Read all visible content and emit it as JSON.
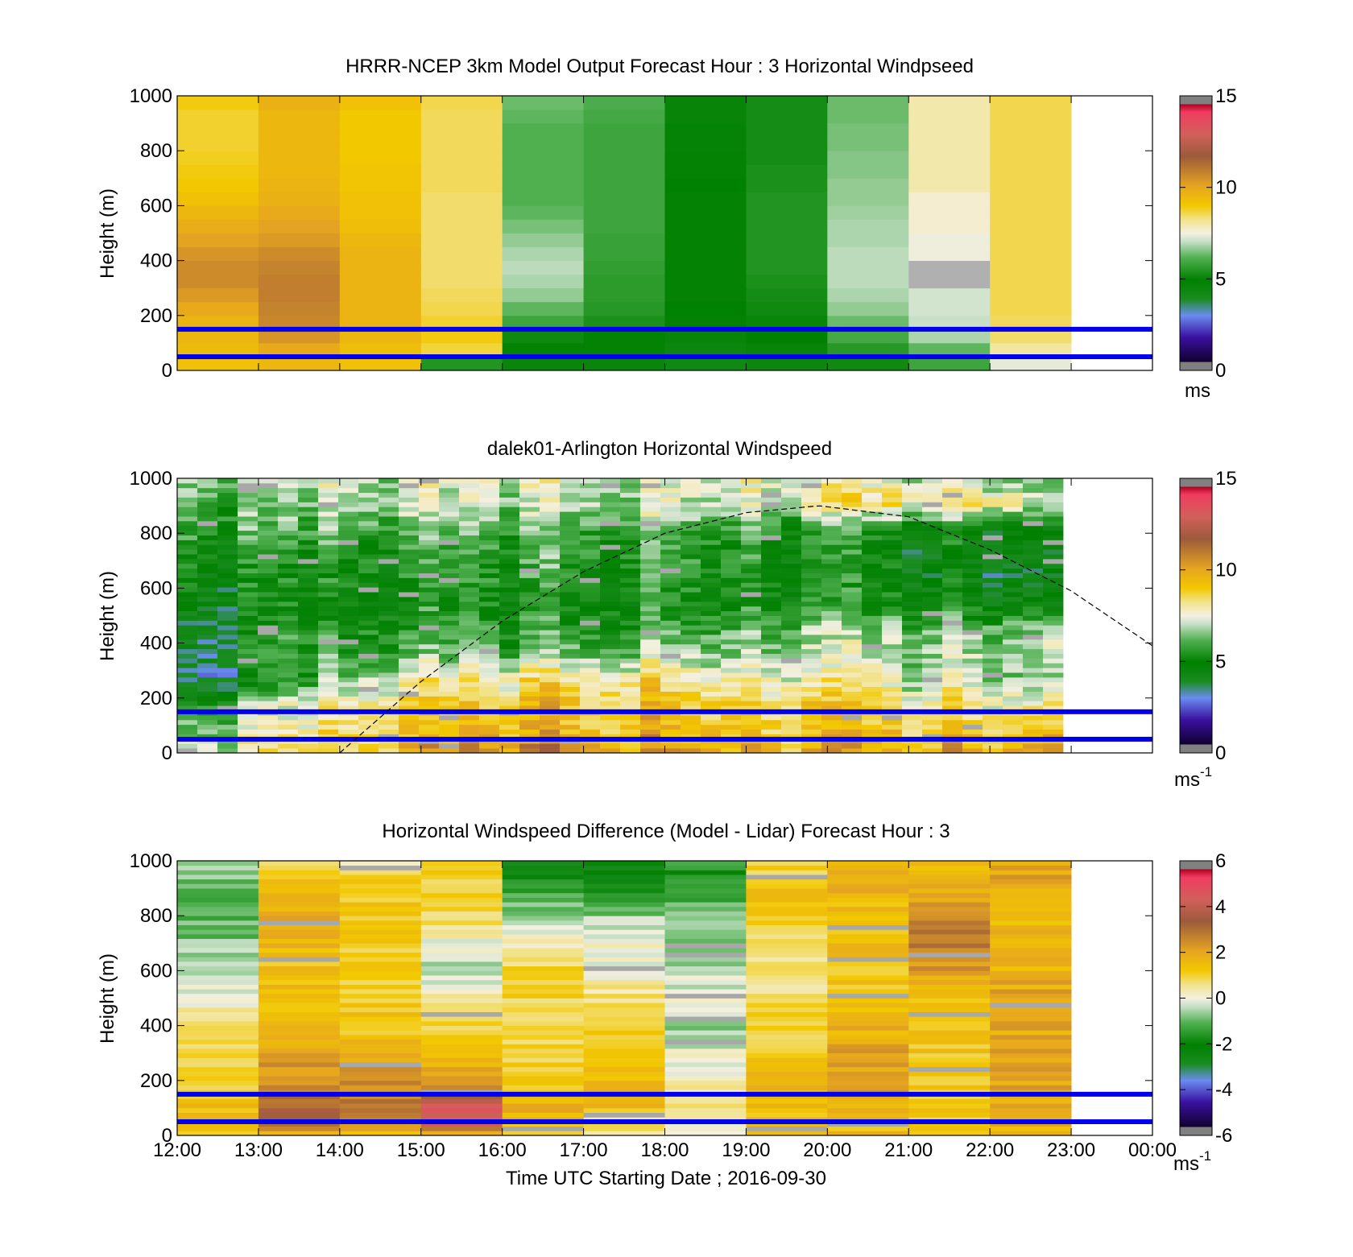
{
  "figure": {
    "xaxis": {
      "label": "Time UTC  Starting Date ; 2016-09-30",
      "ticks": [
        "12:00",
        "13:00",
        "14:00",
        "15:00",
        "16:00",
        "17:00",
        "18:00",
        "19:00",
        "20:00",
        "21:00",
        "22:00",
        "23:00",
        "00:00"
      ]
    }
  },
  "chart_data": [
    {
      "type": "heatmap",
      "title": "HRRR-NCEP 3km Model Output   Forecast Hour : 3 Horizontal Windpseed",
      "ylabel": "Height (m)",
      "ylim": [
        0,
        1000
      ],
      "yticks": [
        "0",
        "200",
        "400",
        "600",
        "800",
        "1000"
      ],
      "x_hours": [
        12,
        13,
        14,
        15,
        16,
        17,
        18,
        19,
        20,
        21,
        22,
        23
      ],
      "colorbar": {
        "min": 0,
        "max": 15,
        "ticks": [
          "0",
          "5",
          "10",
          "15"
        ],
        "unit": "ms"
      },
      "hlines_m": [
        50,
        150
      ],
      "hline_color": "#0000ee",
      "columns_ms": [
        [
          9.5,
          9.7,
          9.8,
          9.9,
          10.2,
          10.6,
          10.9,
          10.9,
          10.7,
          10.4,
          10.1,
          9.8,
          9.5,
          9.3,
          9.2,
          9.1,
          9.0,
          9.0,
          9.0,
          9.2
        ],
        [
          9.8,
          10.2,
          10.7,
          11.0,
          11.1,
          11.2,
          11.2,
          11.1,
          10.9,
          10.6,
          10.4,
          10.2,
          10.0,
          9.9,
          9.8,
          9.8,
          9.8,
          9.8,
          9.8,
          10.0
        ],
        [
          9.5,
          9.6,
          9.8,
          9.9,
          9.9,
          9.9,
          9.9,
          9.9,
          9.9,
          9.8,
          9.6,
          9.5,
          9.5,
          9.4,
          9.4,
          9.3,
          9.3,
          9.3,
          9.3,
          9.5
        ],
        [
          5.5,
          8.9,
          9.2,
          9.0,
          8.8,
          8.7,
          8.6,
          8.6,
          8.6,
          8.6,
          8.6,
          8.6,
          8.6,
          8.7,
          8.7,
          8.7,
          8.7,
          8.7,
          8.7,
          8.8
        ],
        [
          4.5,
          4.8,
          5.2,
          6.0,
          6.4,
          6.8,
          7.0,
          7.1,
          7.0,
          6.8,
          6.6,
          6.4,
          6.3,
          6.3,
          6.3,
          6.3,
          6.3,
          6.3,
          6.4,
          6.5
        ],
        [
          4.5,
          4.8,
          5.0,
          5.4,
          5.6,
          5.7,
          5.7,
          5.8,
          5.9,
          5.9,
          6.0,
          6.0,
          6.0,
          6.0,
          6.0,
          6.0,
          6.0,
          6.0,
          6.1,
          6.2
        ],
        [
          4.2,
          4.4,
          4.6,
          4.8,
          4.9,
          5.0,
          5.0,
          5.0,
          5.0,
          5.0,
          5.0,
          5.0,
          5.0,
          4.9,
          4.8,
          4.8,
          4.7,
          4.7,
          4.6,
          4.6
        ],
        [
          4.4,
          4.6,
          4.9,
          5.1,
          5.2,
          5.3,
          5.4,
          5.5,
          5.5,
          5.5,
          5.5,
          5.5,
          5.5,
          5.4,
          5.4,
          5.3,
          5.3,
          5.3,
          5.3,
          5.3
        ],
        [
          5.2,
          5.6,
          6.1,
          6.5,
          6.8,
          7.0,
          7.1,
          7.1,
          7.1,
          7.0,
          7.0,
          6.9,
          6.8,
          6.8,
          6.7,
          6.7,
          6.6,
          6.6,
          6.5,
          6.5
        ],
        [
          6.0,
          6.4,
          7.0,
          7.2,
          7.3,
          7.3,
          -1,
          -1,
          7.6,
          7.6,
          7.8,
          7.8,
          7.8,
          8.1,
          8.1,
          8.1,
          8.1,
          8.1,
          8.1,
          8.1
        ],
        [
          7.5,
          8.2,
          8.6,
          8.7,
          8.8,
          8.8,
          8.8,
          8.8,
          8.8,
          8.8,
          8.8,
          8.8,
          8.8,
          8.8,
          8.8,
          8.8,
          8.8,
          8.8,
          8.8,
          8.8
        ]
      ]
    },
    {
      "type": "heatmap",
      "title": "dalek01-Arlington  Horizontal Windspeed",
      "ylabel": "Height (m)",
      "ylim": [
        0,
        1000
      ],
      "yticks": [
        "0",
        "200",
        "400",
        "600",
        "800",
        "1000"
      ],
      "x_range_hours": [
        12,
        22.9
      ],
      "colorbar": {
        "min": 0,
        "max": 15,
        "ticks": [
          "0",
          "5",
          "10",
          "15"
        ],
        "unit": "ms",
        "unit_exp": "-1"
      },
      "hlines_m": [
        50,
        150
      ],
      "hline_color": "#0000ee",
      "dashed_curve": {
        "x_hours": [
          14.0,
          15.0,
          16.0,
          17.0,
          18.0,
          19.0,
          19.9,
          21.0,
          22.0,
          23.0,
          24.0
        ],
        "y_m": [
          0,
          260,
          480,
          660,
          800,
          875,
          900,
          860,
          740,
          590,
          390
        ]
      },
      "profile_hours": [
        12.0,
        13.0,
        14.0,
        15.0,
        16.0,
        17.0,
        18.0,
        19.0,
        20.0,
        21.0,
        22.0,
        22.9
      ],
      "profile_ms": [
        [
          7.4,
          8.0,
          9.0,
          10.2,
          11.0,
          10.8,
          10.4,
          10.0,
          9.9,
          10.0,
          10.3,
          10.8
        ],
        [
          6.0,
          7.2,
          8.4,
          9.0,
          9.6,
          9.8,
          9.6,
          9.4,
          9.2,
          9.2,
          9.4,
          9.8
        ],
        [
          4.6,
          6.8,
          7.8,
          8.8,
          9.2,
          9.4,
          9.2,
          9.0,
          8.8,
          8.6,
          8.4,
          8.2
        ],
        [
          2.6,
          4.6,
          6.6,
          7.6,
          8.2,
          8.8,
          8.4,
          8.0,
          7.8,
          7.4,
          7.2,
          7.0
        ],
        [
          2.8,
          5.4,
          6.0,
          6.2,
          6.4,
          6.6,
          6.8,
          7.0,
          7.0,
          7.2,
          7.4,
          7.6
        ],
        [
          3.2,
          5.2,
          5.6,
          5.6,
          5.8,
          5.8,
          6.0,
          6.2,
          6.4,
          6.6,
          6.8,
          7.0
        ],
        [
          4.0,
          4.8,
          5.0,
          5.2,
          5.2,
          5.4,
          5.4,
          5.4,
          5.2,
          5.2,
          5.0,
          4.8
        ],
        [
          4.6,
          5.0,
          5.2,
          5.4,
          5.6,
          5.6,
          5.6,
          5.4,
          5.0,
          4.8,
          4.4,
          4.4
        ],
        [
          4.8,
          5.2,
          5.4,
          5.6,
          5.8,
          6.0,
          6.0,
          5.6,
          5.2,
          4.8,
          4.4,
          4.0
        ],
        [
          5.6,
          6.0,
          6.4,
          6.4,
          6.4,
          6.4,
          6.2,
          6.0,
          5.6,
          5.4,
          5.0,
          4.6
        ],
        [
          6.0,
          6.4,
          6.8,
          7.0,
          7.2,
          7.2,
          7.2,
          7.4,
          8.0,
          8.6,
          9.0,
          7.2
        ],
        [
          6.6,
          7.0,
          7.2,
          7.4,
          7.4,
          7.6,
          7.6,
          7.6,
          7.4,
          7.4,
          7.2,
          7.0
        ]
      ]
    },
    {
      "type": "heatmap",
      "title": "Horizontal Windspeed Difference (Model - Lidar) Forecast Hour : 3",
      "ylabel": "Height (m)",
      "ylim": [
        0,
        1000
      ],
      "yticks": [
        "0",
        "200",
        "400",
        "600",
        "800",
        "1000"
      ],
      "x_hours": [
        12,
        13,
        14,
        15,
        16,
        17,
        18,
        19,
        20,
        21,
        22,
        23
      ],
      "colorbar": {
        "min": -6,
        "max": 6,
        "ticks": [
          "-6",
          "-4",
          "-2",
          "0",
          "2",
          "4",
          "6"
        ],
        "unit": "ms",
        "unit_exp": "-1"
      },
      "hlines_m": [
        50,
        150
      ],
      "hline_color": "#0000ee",
      "column_means": [
        [
          1.6,
          1.8,
          1.6,
          1.4,
          1.2,
          1.0,
          1.0,
          0.8,
          0.6,
          0.4,
          0.0,
          -0.2,
          -0.4,
          -0.6,
          -0.8,
          -1.0,
          -1.0,
          -0.8,
          -0.6,
          -0.4
        ],
        [
          1.8,
          3.6,
          3.4,
          2.8,
          2.6,
          2.4,
          2.2,
          2.0,
          1.8,
          1.8,
          1.6,
          1.6,
          1.6,
          1.8,
          2.0,
          2.0,
          1.8,
          1.8,
          1.6,
          0.2
        ],
        [
          1.4,
          2.8,
          3.0,
          2.8,
          2.6,
          2.2,
          1.8,
          1.6,
          1.4,
          1.4,
          1.2,
          1.2,
          1.4,
          1.4,
          1.4,
          1.4,
          1.4,
          1.4,
          1.2,
          0.4
        ],
        [
          1.6,
          4.6,
          4.6,
          3.0,
          2.4,
          1.8,
          1.6,
          1.4,
          1.2,
          0.6,
          0.2,
          0.0,
          -0.2,
          0.0,
          0.4,
          1.0,
          1.2,
          1.2,
          1.2,
          1.0
        ],
        [
          1.2,
          1.8,
          2.0,
          1.6,
          1.4,
          1.2,
          1.0,
          0.8,
          0.8,
          1.0,
          1.2,
          1.2,
          1.0,
          0.4,
          0.0,
          -0.4,
          -0.8,
          -1.4,
          -2.0,
          -2.6
        ],
        [
          0.8,
          0.6,
          1.6,
          1.8,
          1.8,
          1.6,
          1.4,
          1.4,
          1.2,
          1.0,
          0.6,
          0.4,
          0.0,
          0.0,
          0.2,
          -0.4,
          -1.2,
          -1.8,
          -2.4,
          -2.8
        ],
        [
          0.0,
          0.4,
          0.6,
          0.6,
          0.4,
          0.2,
          0.0,
          -0.4,
          -0.4,
          -0.2,
          0.0,
          -0.2,
          -0.4,
          -0.4,
          -0.6,
          -0.8,
          -1.0,
          -1.4,
          -1.6,
          -1.2
        ],
        [
          1.4,
          1.6,
          1.6,
          1.8,
          1.8,
          1.6,
          1.4,
          1.2,
          1.2,
          1.0,
          0.8,
          0.6,
          0.6,
          0.8,
          1.2,
          1.4,
          1.6,
          1.4,
          1.2,
          1.2
        ],
        [
          1.6,
          1.8,
          2.0,
          2.2,
          2.4,
          2.4,
          2.2,
          2.0,
          1.8,
          1.6,
          1.4,
          1.4,
          1.6,
          1.6,
          1.6,
          1.8,
          1.8,
          2.0,
          2.0,
          2.0
        ],
        [
          1.2,
          1.4,
          1.4,
          1.4,
          1.4,
          1.4,
          1.4,
          1.4,
          1.4,
          1.6,
          1.8,
          2.2,
          2.6,
          3.0,
          3.0,
          2.8,
          2.4,
          2.2,
          2.0,
          1.8
        ],
        [
          2.0,
          2.0,
          2.0,
          2.2,
          2.2,
          2.2,
          2.2,
          2.2,
          2.2,
          2.2,
          2.2,
          2.0,
          2.0,
          2.0,
          1.8,
          1.8,
          2.0,
          2.2,
          2.2,
          2.2
        ]
      ]
    }
  ]
}
